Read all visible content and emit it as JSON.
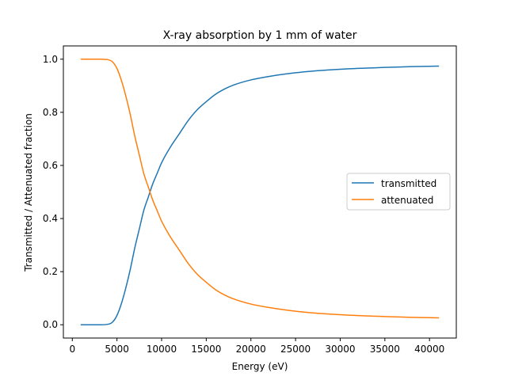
{
  "chart_data": {
    "type": "line",
    "title": "X-ray absorption by 1 mm of water",
    "xlabel": "Energy (eV)",
    "ylabel": "Transmitted / Attenuated fraction",
    "xlim": [
      -1000,
      43000
    ],
    "ylim": [
      -0.05,
      1.05
    ],
    "xticks": [
      0,
      5000,
      10000,
      15000,
      20000,
      25000,
      30000,
      35000,
      40000
    ],
    "xtick_labels": [
      "0",
      "5000",
      "10000",
      "15000",
      "20000",
      "25000",
      "30000",
      "35000",
      "40000"
    ],
    "yticks": [
      0.0,
      0.2,
      0.4,
      0.6,
      0.8,
      1.0
    ],
    "ytick_labels": [
      "0.0",
      "0.2",
      "0.4",
      "0.6",
      "0.8",
      "1.0"
    ],
    "grid": false,
    "legend_position": "center-right",
    "x": [
      1000,
      3000,
      4000,
      4500,
      5000,
      5500,
      6000,
      6500,
      7000,
      7500,
      8000,
      8500,
      9000,
      9500,
      10000,
      11000,
      12000,
      13000,
      14000,
      15000,
      16000,
      17000,
      18000,
      20000,
      22000,
      25000,
      28000,
      31000,
      35000,
      38000,
      41000
    ],
    "series": [
      {
        "name": "transmitted",
        "color": "#1f77b4",
        "values": [
          0.0,
          0.0,
          0.002,
          0.01,
          0.035,
          0.08,
          0.14,
          0.21,
          0.29,
          0.36,
          0.43,
          0.48,
          0.53,
          0.57,
          0.61,
          0.67,
          0.72,
          0.77,
          0.81,
          0.84,
          0.867,
          0.887,
          0.902,
          0.922,
          0.935,
          0.949,
          0.958,
          0.964,
          0.969,
          0.972,
          0.974
        ]
      },
      {
        "name": "attenuated",
        "color": "#ff7f0e",
        "values": [
          1.0,
          1.0,
          0.998,
          0.99,
          0.965,
          0.92,
          0.86,
          0.79,
          0.71,
          0.64,
          0.57,
          0.52,
          0.47,
          0.43,
          0.39,
          0.33,
          0.28,
          0.23,
          0.19,
          0.16,
          0.133,
          0.113,
          0.098,
          0.078,
          0.065,
          0.051,
          0.042,
          0.036,
          0.031,
          0.028,
          0.026
        ]
      }
    ]
  }
}
